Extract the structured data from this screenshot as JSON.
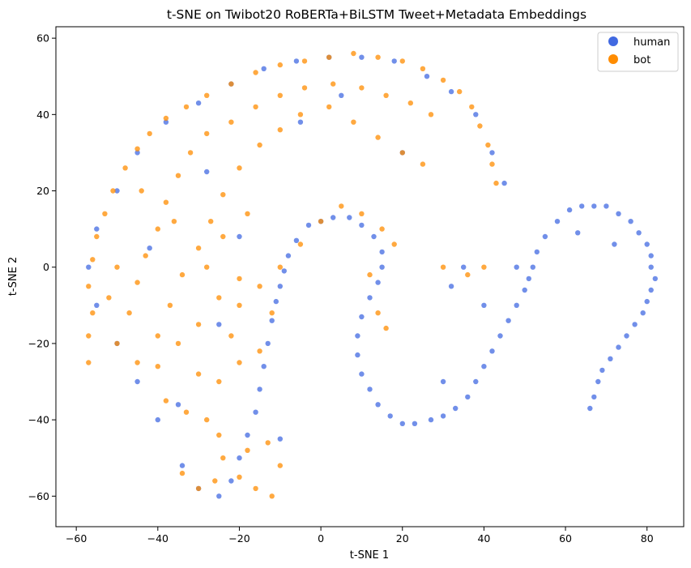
{
  "colors": {
    "human": "#4169e1",
    "bot": "#ff8c00"
  },
  "chart_data": {
    "type": "scatter",
    "title": "t-SNE on Twibot20 RoBERTa+BiLSTM Tweet+Metadata Embeddings",
    "xlabel": "t-SNE 1",
    "ylabel": "t-SNE 2",
    "xlim": [
      -65,
      89
    ],
    "ylim": [
      -68,
      63
    ],
    "x_ticks": [
      -60,
      -40,
      -20,
      0,
      20,
      40,
      60,
      80
    ],
    "y_ticks": [
      -60,
      -40,
      -20,
      0,
      20,
      40,
      60
    ],
    "x_tick_labels": [
      "−60",
      "−40",
      "−20",
      "0",
      "20",
      "40",
      "60",
      "80"
    ],
    "y_tick_labels": [
      "−60",
      "−40",
      "−20",
      "0",
      "20",
      "40",
      "60"
    ],
    "grid": false,
    "legend_position": "top-right",
    "legend": [
      {
        "label": "human",
        "color": "#4169e1"
      },
      {
        "label": "bot",
        "color": "#ff8c00"
      }
    ],
    "series": [
      {
        "name": "human",
        "color": "#4169e1",
        "points": [
          [
            66,
            -37
          ],
          [
            67,
            -34
          ],
          [
            68,
            -30
          ],
          [
            69,
            -27
          ],
          [
            71,
            -24
          ],
          [
            73,
            -21
          ],
          [
            75,
            -18
          ],
          [
            77,
            -15
          ],
          [
            79,
            -12
          ],
          [
            80,
            -9
          ],
          [
            81,
            -6
          ],
          [
            82,
            -3
          ],
          [
            81,
            0
          ],
          [
            81,
            3
          ],
          [
            80,
            6
          ],
          [
            78,
            9
          ],
          [
            76,
            12
          ],
          [
            73,
            14
          ],
          [
            70,
            16
          ],
          [
            67,
            16
          ],
          [
            64,
            16
          ],
          [
            61,
            15
          ],
          [
            58,
            12
          ],
          [
            55,
            8
          ],
          [
            53,
            4
          ],
          [
            52,
            0
          ],
          [
            51,
            -3
          ],
          [
            50,
            -6
          ],
          [
            48,
            -10
          ],
          [
            46,
            -14
          ],
          [
            44,
            -18
          ],
          [
            42,
            -22
          ],
          [
            40,
            -26
          ],
          [
            38,
            -30
          ],
          [
            36,
            -34
          ],
          [
            33,
            -37
          ],
          [
            30,
            -39
          ],
          [
            27,
            -40
          ],
          [
            23,
            -41
          ],
          [
            20,
            -41
          ],
          [
            17,
            -39
          ],
          [
            14,
            -36
          ],
          [
            12,
            -32
          ],
          [
            10,
            -28
          ],
          [
            9,
            -23
          ],
          [
            9,
            -18
          ],
          [
            10,
            -13
          ],
          [
            12,
            -8
          ],
          [
            14,
            -4
          ],
          [
            15,
            0
          ],
          [
            15,
            4
          ],
          [
            13,
            8
          ],
          [
            10,
            11
          ],
          [
            7,
            13
          ],
          [
            3,
            13
          ],
          [
            0,
            12
          ],
          [
            -3,
            11
          ],
          [
            -6,
            7
          ],
          [
            -8,
            3
          ],
          [
            -9,
            -1
          ],
          [
            -10,
            -5
          ],
          [
            -11,
            -9
          ],
          [
            -12,
            -14
          ],
          [
            -13,
            -20
          ],
          [
            -14,
            -26
          ],
          [
            -15,
            -32
          ],
          [
            -16,
            -38
          ],
          [
            -18,
            -44
          ],
          [
            -20,
            -50
          ],
          [
            -22,
            -56
          ],
          [
            -25,
            -60
          ],
          [
            -30,
            -58
          ],
          [
            -34,
            -52
          ],
          [
            -40,
            -40
          ],
          [
            -45,
            -30
          ],
          [
            -50,
            -20
          ],
          [
            -55,
            -10
          ],
          [
            -57,
            0
          ],
          [
            -55,
            10
          ],
          [
            -50,
            20
          ],
          [
            -45,
            30
          ],
          [
            -38,
            38
          ],
          [
            -30,
            43
          ],
          [
            -22,
            48
          ],
          [
            -14,
            52
          ],
          [
            -6,
            54
          ],
          [
            2,
            55
          ],
          [
            10,
            55
          ],
          [
            18,
            54
          ],
          [
            26,
            50
          ],
          [
            32,
            46
          ],
          [
            38,
            40
          ],
          [
            42,
            30
          ],
          [
            45,
            22
          ],
          [
            35,
            0
          ],
          [
            32,
            -5
          ],
          [
            30,
            -30
          ],
          [
            40,
            -10
          ],
          [
            48,
            0
          ],
          [
            72,
            6
          ],
          [
            63,
            9
          ],
          [
            -20,
            8
          ],
          [
            -28,
            25
          ],
          [
            -5,
            38
          ],
          [
            5,
            45
          ],
          [
            -35,
            -36
          ],
          [
            -10,
            -45
          ],
          [
            -42,
            5
          ],
          [
            -25,
            -15
          ],
          [
            20,
            30
          ]
        ]
      },
      {
        "name": "bot",
        "color": "#ff8c00",
        "points": [
          [
            -57,
            -25
          ],
          [
            -57,
            -18
          ],
          [
            -56,
            -12
          ],
          [
            -57,
            -5
          ],
          [
            -56,
            2
          ],
          [
            -55,
            8
          ],
          [
            -53,
            14
          ],
          [
            -51,
            20
          ],
          [
            -48,
            26
          ],
          [
            -45,
            31
          ],
          [
            -42,
            35
          ],
          [
            -38,
            39
          ],
          [
            -33,
            42
          ],
          [
            -28,
            45
          ],
          [
            -22,
            48
          ],
          [
            -16,
            51
          ],
          [
            -10,
            53
          ],
          [
            -4,
            54
          ],
          [
            2,
            55
          ],
          [
            8,
            56
          ],
          [
            14,
            55
          ],
          [
            20,
            54
          ],
          [
            25,
            52
          ],
          [
            30,
            49
          ],
          [
            34,
            46
          ],
          [
            37,
            42
          ],
          [
            39,
            37
          ],
          [
            41,
            32
          ],
          [
            42,
            27
          ],
          [
            43,
            22
          ],
          [
            -50,
            -20
          ],
          [
            -47,
            -12
          ],
          [
            -45,
            -4
          ],
          [
            -43,
            3
          ],
          [
            -40,
            10
          ],
          [
            -38,
            17
          ],
          [
            -35,
            24
          ],
          [
            -32,
            30
          ],
          [
            -28,
            35
          ],
          [
            -22,
            38
          ],
          [
            -16,
            42
          ],
          [
            -10,
            45
          ],
          [
            -4,
            47
          ],
          [
            3,
            48
          ],
          [
            10,
            47
          ],
          [
            16,
            45
          ],
          [
            22,
            43
          ],
          [
            27,
            40
          ],
          [
            -45,
            -25
          ],
          [
            -40,
            -18
          ],
          [
            -37,
            -10
          ],
          [
            -34,
            -2
          ],
          [
            -30,
            5
          ],
          [
            -27,
            12
          ],
          [
            -24,
            19
          ],
          [
            -20,
            26
          ],
          [
            -15,
            32
          ],
          [
            -10,
            36
          ],
          [
            -5,
            40
          ],
          [
            2,
            42
          ],
          [
            8,
            38
          ],
          [
            14,
            34
          ],
          [
            20,
            30
          ],
          [
            25,
            27
          ],
          [
            -38,
            -35
          ],
          [
            -33,
            -38
          ],
          [
            -28,
            -40
          ],
          [
            -25,
            -44
          ],
          [
            -24,
            -50
          ],
          [
            -26,
            -56
          ],
          [
            -30,
            -58
          ],
          [
            -34,
            -54
          ],
          [
            -20,
            -55
          ],
          [
            -16,
            -58
          ],
          [
            -12,
            -60
          ],
          [
            -10,
            -52
          ],
          [
            -13,
            -46
          ],
          [
            -18,
            -48
          ],
          [
            -30,
            -28
          ],
          [
            -25,
            -30
          ],
          [
            -20,
            -25
          ],
          [
            -15,
            -22
          ],
          [
            -20,
            -10
          ],
          [
            -15,
            -5
          ],
          [
            -10,
            0
          ],
          [
            -5,
            6
          ],
          [
            0,
            12
          ],
          [
            5,
            16
          ],
          [
            10,
            14
          ],
          [
            15,
            10
          ],
          [
            18,
            6
          ],
          [
            -30,
            -15
          ],
          [
            -25,
            -8
          ],
          [
            -20,
            -3
          ],
          [
            -28,
            0
          ],
          [
            -24,
            8
          ],
          [
            -18,
            14
          ],
          [
            -35,
            -20
          ],
          [
            -22,
            -18
          ],
          [
            -12,
            -12
          ],
          [
            14,
            -12
          ],
          [
            16,
            -16
          ],
          [
            12,
            -2
          ],
          [
            30,
            0
          ],
          [
            36,
            -2
          ],
          [
            40,
            0
          ],
          [
            -40,
            -26
          ],
          [
            -50,
            0
          ],
          [
            -52,
            -8
          ],
          [
            -44,
            20
          ],
          [
            -36,
            12
          ]
        ]
      }
    ]
  }
}
